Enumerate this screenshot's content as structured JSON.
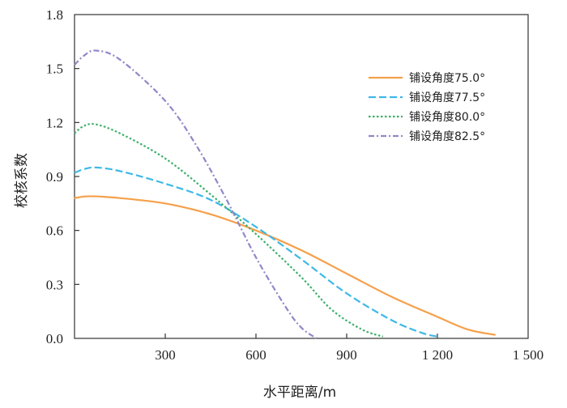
{
  "chart_data": {
    "type": "line",
    "title": "",
    "xlabel": "水平距离/m",
    "ylabel": "校核系数",
    "xlim": [
      0,
      1500
    ],
    "ylim": [
      0,
      1.8
    ],
    "xticks": [
      300,
      600,
      900,
      1200,
      1500
    ],
    "xtick_labels": [
      "300",
      "600",
      "900",
      "1 200",
      "1 500"
    ],
    "yticks": [
      0,
      0.3,
      0.6,
      0.9,
      1.2,
      1.5,
      1.8
    ],
    "ytick_labels": [
      "0.0",
      "0.3",
      "0.6",
      "0.9",
      "1.2",
      "1.5",
      "1.8"
    ],
    "grid": false,
    "legend_position": "top-right",
    "series": [
      {
        "name": "铺设角度75.0°",
        "color": "#f5a04a",
        "dash": "solid",
        "points": [
          [
            0,
            0.78
          ],
          [
            50,
            0.79
          ],
          [
            150,
            0.78
          ],
          [
            300,
            0.75
          ],
          [
            450,
            0.69
          ],
          [
            600,
            0.6
          ],
          [
            750,
            0.49
          ],
          [
            900,
            0.36
          ],
          [
            1050,
            0.23
          ],
          [
            1200,
            0.12
          ],
          [
            1300,
            0.05
          ],
          [
            1390,
            0.02
          ]
        ]
      },
      {
        "name": "铺设角度77.5°",
        "color": "#3fb8e8",
        "dash": "long-dash",
        "points": [
          [
            0,
            0.92
          ],
          [
            30,
            0.94
          ],
          [
            70,
            0.95
          ],
          [
            150,
            0.93
          ],
          [
            300,
            0.86
          ],
          [
            450,
            0.77
          ],
          [
            600,
            0.62
          ],
          [
            750,
            0.44
          ],
          [
            900,
            0.25
          ],
          [
            1050,
            0.1
          ],
          [
            1150,
            0.03
          ],
          [
            1200,
            0.01
          ]
        ]
      },
      {
        "name": "铺设角度80.0°",
        "color": "#3db06a",
        "dash": "dotted",
        "points": [
          [
            0,
            1.14
          ],
          [
            30,
            1.18
          ],
          [
            70,
            1.19
          ],
          [
            150,
            1.14
          ],
          [
            300,
            1.0
          ],
          [
            450,
            0.8
          ],
          [
            600,
            0.58
          ],
          [
            750,
            0.34
          ],
          [
            850,
            0.16
          ],
          [
            950,
            0.05
          ],
          [
            1020,
            0.01
          ]
        ]
      },
      {
        "name": "铺设角度82.5°",
        "color": "#8f88c8",
        "dash": "dash-dot",
        "points": [
          [
            0,
            1.52
          ],
          [
            30,
            1.57
          ],
          [
            70,
            1.6
          ],
          [
            150,
            1.55
          ],
          [
            300,
            1.32
          ],
          [
            400,
            1.08
          ],
          [
            500,
            0.78
          ],
          [
            600,
            0.45
          ],
          [
            700,
            0.17
          ],
          [
            750,
            0.06
          ],
          [
            800,
            0.0
          ]
        ]
      }
    ]
  }
}
